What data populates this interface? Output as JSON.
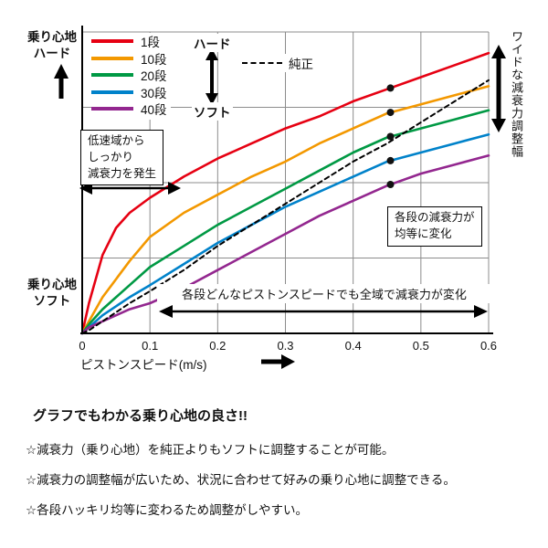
{
  "chart_data": {
    "type": "line",
    "title": "",
    "xlabel": "ピストンスピード(m/s)",
    "ylabel_top": [
      "乗り心地",
      "ハード"
    ],
    "ylabel_bottom": [
      "乗り心地",
      "ソフト"
    ],
    "x_ticks": [
      "0",
      "0.1",
      "0.2",
      "0.3",
      "0.4",
      "0.5",
      "0.6"
    ],
    "xlim": [
      0,
      0.6
    ],
    "ylim": [
      0,
      100
    ],
    "grid": true,
    "x": [
      0,
      0.01,
      0.03,
      0.05,
      0.07,
      0.1,
      0.15,
      0.2,
      0.25,
      0.3,
      0.35,
      0.4,
      0.45,
      0.5,
      0.55,
      0.6
    ],
    "series": [
      {
        "name": "1段",
        "color": "#e60012",
        "values": [
          0,
          10,
          26,
          35,
          40,
          45,
          52,
          58,
          63,
          68,
          72,
          77,
          81,
          85,
          89,
          93
        ]
      },
      {
        "name": "10段",
        "color": "#f39800",
        "values": [
          0,
          4,
          12,
          18,
          24,
          32,
          40,
          46,
          52,
          57,
          63,
          68,
          73,
          76,
          79,
          82
        ]
      },
      {
        "name": "20段",
        "color": "#009944",
        "values": [
          0,
          3,
          8,
          12,
          16,
          22,
          29,
          36,
          42,
          48,
          54,
          60,
          65,
          68,
          71,
          74
        ]
      },
      {
        "name": "30段",
        "color": "#0082ca",
        "values": [
          0,
          2,
          6,
          9,
          12,
          16,
          23,
          30,
          36,
          42,
          47,
          52,
          57,
          60,
          63,
          66
        ]
      },
      {
        "name": "40段",
        "color": "#93278f",
        "values": [
          0,
          2,
          4,
          6,
          8,
          10,
          15,
          21,
          27,
          33,
          39,
          44,
          49,
          53,
          56,
          59
        ]
      },
      {
        "name": "純正",
        "color": "#000000",
        "dashed": true,
        "values": [
          0,
          1,
          4,
          7,
          10,
          14,
          21,
          29,
          36,
          43,
          50,
          57,
          63,
          70,
          77,
          84
        ]
      }
    ],
    "dots": {
      "x": 0.455,
      "on_series": [
        "1段",
        "10段",
        "20段",
        "30段",
        "40段"
      ]
    },
    "center_legend": {
      "hard": "ハード",
      "soft": "ソフト"
    },
    "right_label": "ワイドな減衰力調整幅",
    "annotations": {
      "low_speed": [
        "低速域から",
        "しっかり",
        "減衰力を発生"
      ],
      "equal_change": [
        "各段の減衰力が",
        "均等に変化"
      ],
      "full_range": "各段どんなピストンスピードでも全域で減衰力が変化"
    }
  },
  "notes": {
    "heading": "グラフでもわかる乗り心地の良さ!!",
    "bullets": [
      "☆減衰力（乗り心地）を純正よりもソフトに調整することが可能。",
      "☆減衰力の調整幅が広いため、状況に合わせて好みの乗り心地に調整できる。",
      "☆各段ハッキリ均等に変わるため調整がしやすい。"
    ]
  }
}
